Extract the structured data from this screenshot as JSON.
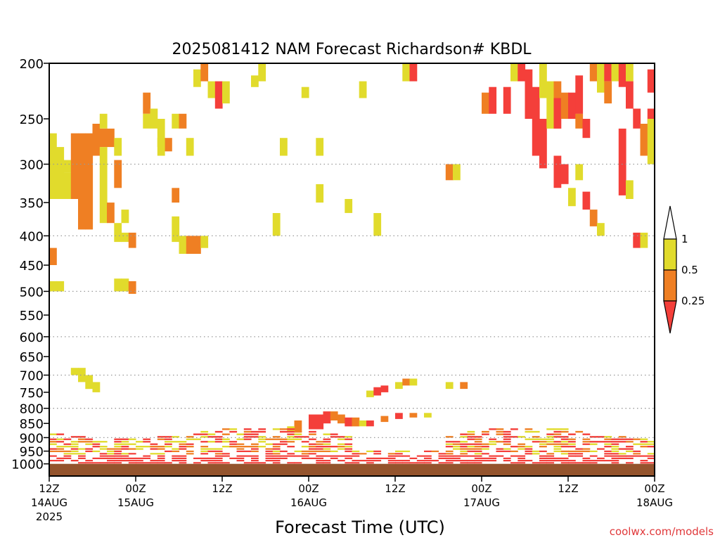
{
  "chart_data": {
    "type": "heatmap",
    "title": "2025081412 NAM Forecast Richardson# KBDL",
    "xlabel": "Forecast Time (UTC)",
    "ylabel": "",
    "x_range_hours": [
      0,
      84
    ],
    "x_ticks": [
      {
        "hour": 0,
        "line1": "12Z",
        "line2": "14AUG",
        "line3": "2025"
      },
      {
        "hour": 12,
        "line1": "00Z",
        "line2": "15AUG",
        "line3": ""
      },
      {
        "hour": 24,
        "line1": "12Z",
        "line2": "",
        "line3": ""
      },
      {
        "hour": 36,
        "line1": "00Z",
        "line2": "16AUG",
        "line3": ""
      },
      {
        "hour": 48,
        "line1": "12Z",
        "line2": "",
        "line3": ""
      },
      {
        "hour": 60,
        "line1": "00Z",
        "line2": "17AUG",
        "line3": ""
      },
      {
        "hour": 72,
        "line1": "12Z",
        "line2": "",
        "line3": ""
      },
      {
        "hour": 84,
        "line1": "00Z",
        "line2": "18AUG",
        "line3": ""
      }
    ],
    "y_axis": "pressure_hPa_log",
    "y_range": [
      200,
      1050
    ],
    "y_ticks": [
      "200",
      "250",
      "300",
      "350",
      "400",
      "450",
      "500",
      "550",
      "600",
      "650",
      "700",
      "750",
      "800",
      "850",
      "900",
      "950",
      "1000"
    ],
    "dotted_gridlines": [
      300,
      400,
      500,
      600,
      700,
      800,
      900
    ],
    "surface_pressure_hPa": 1020,
    "colorbar": {
      "labels": [
        "1",
        "0.5",
        "0.25"
      ],
      "colors": {
        "above_1": "#ffffff",
        "0.5_to_1": "#e1db2c",
        "0.25_to_0.5": "#ef7f23",
        "below_0.25": "#f43f3a",
        "surface": "#94542d"
      }
    },
    "legend_placement": "right",
    "categories_note": "cell value codes: 1 = 0.5-1, 2 = 0.25-0.5, 3 = <0.25",
    "cells": [
      {
        "h": 0,
        "p1": 265,
        "p2": 345,
        "v": 1
      },
      {
        "h": 1,
        "p1": 280,
        "p2": 345,
        "v": 1
      },
      {
        "h": 2,
        "p1": 295,
        "p2": 310,
        "v": 1
      },
      {
        "h": 2,
        "p1": 310,
        "p2": 345,
        "v": 1
      },
      {
        "h": 3,
        "p1": 265,
        "p2": 345,
        "v": 2
      },
      {
        "h": 4,
        "p1": 265,
        "p2": 390,
        "v": 2
      },
      {
        "h": 5,
        "p1": 265,
        "p2": 390,
        "v": 2
      },
      {
        "h": 6,
        "p1": 255,
        "p2": 290,
        "v": 2
      },
      {
        "h": 7,
        "p1": 245,
        "p2": 260,
        "v": 1
      },
      {
        "h": 7,
        "p1": 260,
        "p2": 280,
        "v": 2
      },
      {
        "h": 7,
        "p1": 280,
        "p2": 380,
        "v": 1
      },
      {
        "h": 8,
        "p1": 260,
        "p2": 280,
        "v": 2
      },
      {
        "h": 8,
        "p1": 350,
        "p2": 380,
        "v": 2
      },
      {
        "h": 9,
        "p1": 270,
        "p2": 290,
        "v": 1
      },
      {
        "h": 9,
        "p1": 295,
        "p2": 330,
        "v": 2
      },
      {
        "h": 9,
        "p1": 380,
        "p2": 410,
        "v": 1
      },
      {
        "h": 0,
        "p1": 420,
        "p2": 450,
        "v": 2
      },
      {
        "h": 0,
        "p1": 480,
        "p2": 500,
        "v": 1
      },
      {
        "h": 1,
        "p1": 480,
        "p2": 500,
        "v": 1
      },
      {
        "h": 9,
        "p1": 475,
        "p2": 500,
        "v": 1
      },
      {
        "h": 10,
        "p1": 475,
        "p2": 500,
        "v": 1
      },
      {
        "h": 11,
        "p1": 480,
        "p2": 505,
        "v": 2
      },
      {
        "h": 10,
        "p1": 395,
        "p2": 410,
        "v": 1
      },
      {
        "h": 11,
        "p1": 395,
        "p2": 420,
        "v": 2
      },
      {
        "h": 10,
        "p1": 360,
        "p2": 380,
        "v": 1
      },
      {
        "h": 13,
        "p1": 225,
        "p2": 245,
        "v": 2
      },
      {
        "h": 13,
        "p1": 245,
        "p2": 260,
        "v": 1
      },
      {
        "h": 14,
        "p1": 240,
        "p2": 260,
        "v": 1
      },
      {
        "h": 15,
        "p1": 250,
        "p2": 280,
        "v": 1
      },
      {
        "h": 16,
        "p1": 270,
        "p2": 285,
        "v": 2
      },
      {
        "h": 15,
        "p1": 270,
        "p2": 290,
        "v": 1
      },
      {
        "h": 17,
        "p1": 245,
        "p2": 260,
        "v": 1
      },
      {
        "h": 18,
        "p1": 245,
        "p2": 260,
        "v": 2
      },
      {
        "h": 17,
        "p1": 330,
        "p2": 350,
        "v": 2
      },
      {
        "h": 17,
        "p1": 370,
        "p2": 410,
        "v": 1
      },
      {
        "h": 18,
        "p1": 400,
        "p2": 430,
        "v": 1
      },
      {
        "h": 19,
        "p1": 400,
        "p2": 430,
        "v": 2
      },
      {
        "h": 20,
        "p1": 400,
        "p2": 430,
        "v": 2
      },
      {
        "h": 21,
        "p1": 400,
        "p2": 420,
        "v": 1
      },
      {
        "h": 19,
        "p1": 270,
        "p2": 290,
        "v": 1
      },
      {
        "h": 20,
        "p1": 205,
        "p2": 220,
        "v": 1
      },
      {
        "h": 21,
        "p1": 200,
        "p2": 215,
        "v": 2
      },
      {
        "h": 22,
        "p1": 215,
        "p2": 230,
        "v": 1
      },
      {
        "h": 23,
        "p1": 215,
        "p2": 240,
        "v": 3
      },
      {
        "h": 24,
        "p1": 215,
        "p2": 235,
        "v": 1
      },
      {
        "h": 28,
        "p1": 210,
        "p2": 220,
        "v": 1
      },
      {
        "h": 29,
        "p1": 200,
        "p2": 215,
        "v": 1
      },
      {
        "h": 32,
        "p1": 270,
        "p2": 290,
        "v": 1
      },
      {
        "h": 35,
        "p1": 220,
        "p2": 230,
        "v": 1
      },
      {
        "h": 37,
        "p1": 270,
        "p2": 290,
        "v": 1
      },
      {
        "h": 31,
        "p1": 365,
        "p2": 400,
        "v": 1
      },
      {
        "h": 37,
        "p1": 325,
        "p2": 350,
        "v": 1
      },
      {
        "h": 41,
        "p1": 345,
        "p2": 365,
        "v": 1
      },
      {
        "h": 43,
        "p1": 215,
        "p2": 230,
        "v": 1
      },
      {
        "h": 45,
        "p1": 365,
        "p2": 400,
        "v": 1
      },
      {
        "h": 49,
        "p1": 200,
        "p2": 215,
        "v": 1
      },
      {
        "h": 50,
        "p1": 200,
        "p2": 215,
        "v": 3
      },
      {
        "h": 55,
        "p1": 300,
        "p2": 320,
        "v": 2
      },
      {
        "h": 56,
        "p1": 300,
        "p2": 320,
        "v": 1
      },
      {
        "h": 60,
        "p1": 225,
        "p2": 245,
        "v": 2
      },
      {
        "h": 61,
        "p1": 220,
        "p2": 245,
        "v": 3
      },
      {
        "h": 63,
        "p1": 220,
        "p2": 245,
        "v": 3
      },
      {
        "h": 64,
        "p1": 200,
        "p2": 215,
        "v": 1
      },
      {
        "h": 65,
        "p1": 200,
        "p2": 215,
        "v": 3
      },
      {
        "h": 66,
        "p1": 205,
        "p2": 250,
        "v": 3
      },
      {
        "h": 67,
        "p1": 220,
        "p2": 290,
        "v": 3
      },
      {
        "h": 68,
        "p1": 200,
        "p2": 230,
        "v": 1
      },
      {
        "h": 68,
        "p1": 250,
        "p2": 305,
        "v": 3
      },
      {
        "h": 69,
        "p1": 215,
        "p2": 260,
        "v": 1
      },
      {
        "h": 70,
        "p1": 215,
        "p2": 230,
        "v": 2
      },
      {
        "h": 70,
        "p1": 230,
        "p2": 260,
        "v": 3
      },
      {
        "h": 71,
        "p1": 225,
        "p2": 250,
        "v": 2
      },
      {
        "h": 72,
        "p1": 225,
        "p2": 250,
        "v": 3
      },
      {
        "h": 73,
        "p1": 210,
        "p2": 245,
        "v": 3
      },
      {
        "h": 73,
        "p1": 245,
        "p2": 260,
        "v": 2
      },
      {
        "h": 74,
        "p1": 250,
        "p2": 270,
        "v": 3
      },
      {
        "h": 75,
        "p1": 200,
        "p2": 215,
        "v": 2
      },
      {
        "h": 76,
        "p1": 200,
        "p2": 225,
        "v": 1
      },
      {
        "h": 77,
        "p1": 200,
        "p2": 215,
        "v": 3
      },
      {
        "h": 77,
        "p1": 215,
        "p2": 235,
        "v": 2
      },
      {
        "h": 78,
        "p1": 200,
        "p2": 215,
        "v": 1
      },
      {
        "h": 79,
        "p1": 200,
        "p2": 220,
        "v": 3
      },
      {
        "h": 80,
        "p1": 200,
        "p2": 215,
        "v": 1
      },
      {
        "h": 80,
        "p1": 215,
        "p2": 240,
        "v": 3
      },
      {
        "h": 81,
        "p1": 240,
        "p2": 260,
        "v": 3
      },
      {
        "h": 82,
        "p1": 255,
        "p2": 290,
        "v": 2
      },
      {
        "h": 83,
        "p1": 240,
        "p2": 260,
        "v": 3
      },
      {
        "h": 83,
        "p1": 205,
        "p2": 225,
        "v": 3
      },
      {
        "h": 70,
        "p1": 290,
        "p2": 330,
        "v": 3
      },
      {
        "h": 71,
        "p1": 300,
        "p2": 325,
        "v": 3
      },
      {
        "h": 72,
        "p1": 330,
        "p2": 355,
        "v": 1
      },
      {
        "h": 73,
        "p1": 300,
        "p2": 320,
        "v": 1
      },
      {
        "h": 74,
        "p1": 335,
        "p2": 360,
        "v": 3
      },
      {
        "h": 75,
        "p1": 360,
        "p2": 385,
        "v": 2
      },
      {
        "h": 76,
        "p1": 380,
        "p2": 400,
        "v": 1
      },
      {
        "h": 79,
        "p1": 260,
        "p2": 340,
        "v": 3
      },
      {
        "h": 80,
        "p1": 320,
        "p2": 345,
        "v": 1
      },
      {
        "h": 81,
        "p1": 395,
        "p2": 420,
        "v": 3
      },
      {
        "h": 82,
        "p1": 395,
        "p2": 420,
        "v": 1
      },
      {
        "h": 84,
        "p1": 250,
        "p2": 300,
        "v": 1
      },
      {
        "h": 3,
        "p1": 680,
        "p2": 700,
        "v": 1
      },
      {
        "h": 4,
        "p1": 680,
        "p2": 720,
        "v": 1
      },
      {
        "h": 5,
        "p1": 700,
        "p2": 740,
        "v": 1
      },
      {
        "h": 6,
        "p1": 720,
        "p2": 750,
        "v": 1
      },
      {
        "h": 44,
        "p1": 745,
        "p2": 765,
        "v": 1
      },
      {
        "h": 45,
        "p1": 735,
        "p2": 760,
        "v": 3
      },
      {
        "h": 46,
        "p1": 730,
        "p2": 750,
        "v": 3
      },
      {
        "h": 48,
        "p1": 720,
        "p2": 740,
        "v": 1
      },
      {
        "h": 49,
        "p1": 710,
        "p2": 730,
        "v": 2
      },
      {
        "h": 50,
        "p1": 710,
        "p2": 730,
        "v": 1
      },
      {
        "h": 55,
        "p1": 720,
        "p2": 740,
        "v": 1
      },
      {
        "h": 57,
        "p1": 720,
        "p2": 740,
        "v": 2
      },
      {
        "h": 36,
        "p1": 820,
        "p2": 870,
        "v": 3
      },
      {
        "h": 37,
        "p1": 820,
        "p2": 870,
        "v": 3
      },
      {
        "h": 38,
        "p1": 810,
        "p2": 850,
        "v": 3
      },
      {
        "h": 39,
        "p1": 810,
        "p2": 840,
        "v": 2
      },
      {
        "h": 40,
        "p1": 820,
        "p2": 850,
        "v": 2
      },
      {
        "h": 41,
        "p1": 830,
        "p2": 860,
        "v": 3
      },
      {
        "h": 42,
        "p1": 830,
        "p2": 860,
        "v": 2
      },
      {
        "h": 43,
        "p1": 840,
        "p2": 860,
        "v": 1
      },
      {
        "h": 44,
        "p1": 840,
        "p2": 860,
        "v": 3
      },
      {
        "h": 46,
        "p1": 825,
        "p2": 845,
        "v": 2
      },
      {
        "h": 48,
        "p1": 815,
        "p2": 835,
        "v": 3
      },
      {
        "h": 50,
        "p1": 815,
        "p2": 830,
        "v": 2
      },
      {
        "h": 52,
        "p1": 815,
        "p2": 830,
        "v": 1
      },
      {
        "h": 34,
        "p1": 840,
        "p2": 880,
        "v": 2
      },
      {
        "h": 33,
        "p1": 860,
        "p2": 880,
        "v": 1
      }
    ]
  },
  "footer": {
    "credit": "coolwx.com/models"
  }
}
